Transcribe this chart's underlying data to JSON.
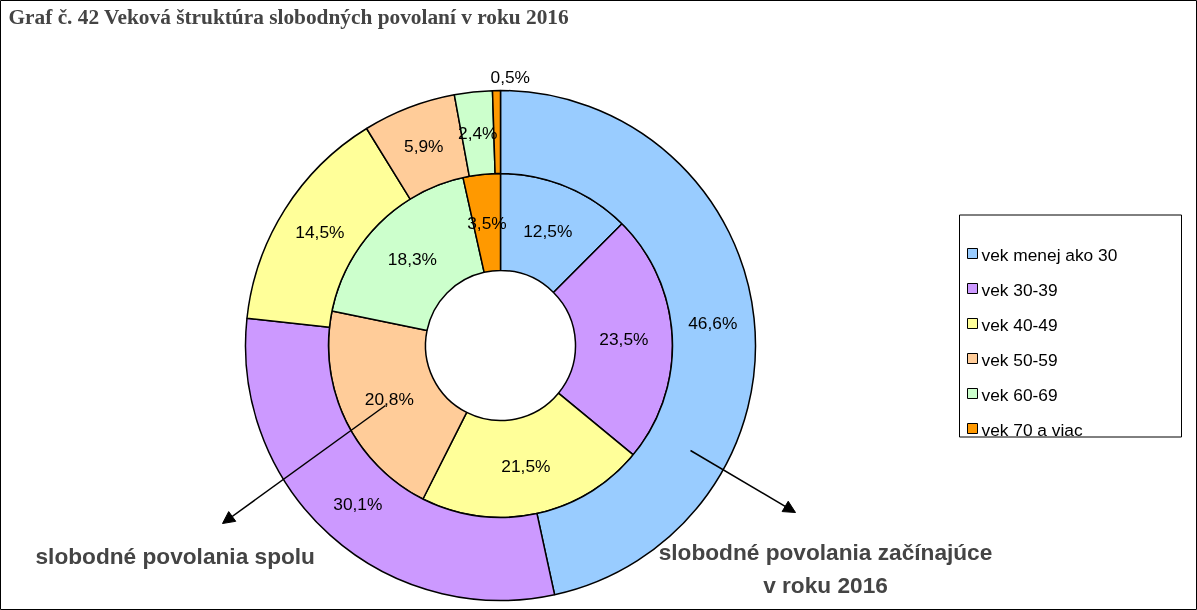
{
  "chart_data": {
    "type": "donut",
    "title": "Graf č. 42 Veková štruktúra slobodných povolaní v roku 2016",
    "categories": [
      "vek menej ako 30",
      "vek 30-39",
      "vek 40-49",
      "vek 50-59",
      "vek 60-69",
      "vek 70 a viac"
    ],
    "colors": [
      "#99ccff",
      "#cc99ff",
      "#ffff99",
      "#ffcc99",
      "#ccffcc",
      "#ff9900"
    ],
    "series": [
      {
        "name": "slobodné povolania spolu",
        "values": [
          12.5,
          23.5,
          21.5,
          20.8,
          18.3,
          3.5
        ],
        "value_labels": [
          "12,5%",
          "23,5%",
          "21,5%",
          "20,8%",
          "18,3%",
          "3,5%"
        ]
      },
      {
        "name": "slobodné povolania začínajúce v roku 2016",
        "values": [
          46.6,
          30.1,
          14.5,
          5.9,
          2.4,
          0.5
        ],
        "value_labels": [
          "46,6%",
          "30,1%",
          "14,5%",
          "5,9%",
          "2,4%",
          "0,5%"
        ]
      }
    ],
    "data_labels": true,
    "legend": "right"
  }
}
